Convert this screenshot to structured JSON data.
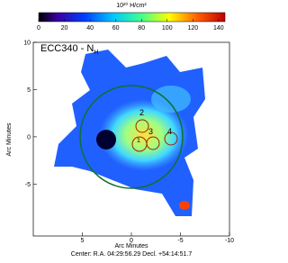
{
  "chart_data": {
    "type": "image",
    "title": {
      "main": "ECC340 - N",
      "sub": "H"
    },
    "colorbar": {
      "label": "10²⁰ H/cm²",
      "lim": [
        0,
        145
      ],
      "ticks": [
        0,
        20,
        40,
        60,
        80,
        100,
        120,
        140
      ]
    },
    "xlabel": "Arc Minutes",
    "ylabel": "Arc Minutes",
    "xlim": [
      10,
      -10
    ],
    "xticks": [
      5,
      0,
      -5,
      -10
    ],
    "ylim": [
      -10.5,
      10
    ],
    "yticks": [
      10,
      5,
      0,
      -5
    ],
    "regions": [
      "1",
      "2",
      "3",
      "4"
    ],
    "footer": "Center: R.A. 04:29:56.29  Decl. +54:14:51.7"
  }
}
